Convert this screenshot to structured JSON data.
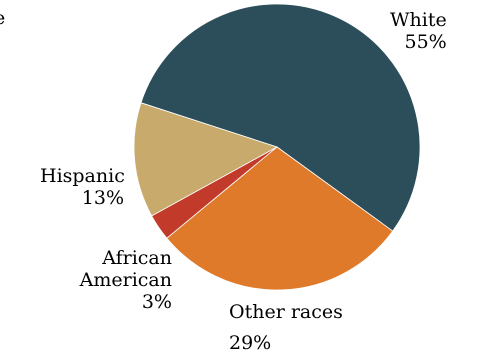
{
  "chart_data": {
    "type": "pie",
    "title": "e",
    "slices": [
      {
        "label": "White",
        "value": 55,
        "display": "55%",
        "color": "#2c4e5a"
      },
      {
        "label": "Other races",
        "value": 29,
        "display": "29%",
        "color": "#df7a2a"
      },
      {
        "label": "African American",
        "value": 3,
        "display": "3%",
        "color": "#c23b2a"
      },
      {
        "label": "Hispanic",
        "value": 13,
        "display": "13%",
        "color": "#c8ab6c"
      }
    ],
    "label_lines": {
      "White": [
        "White"
      ],
      "Other races": [
        "Other races"
      ],
      "African American": [
        "African",
        "American"
      ],
      "Hispanic": [
        "Hispanic"
      ]
    }
  }
}
